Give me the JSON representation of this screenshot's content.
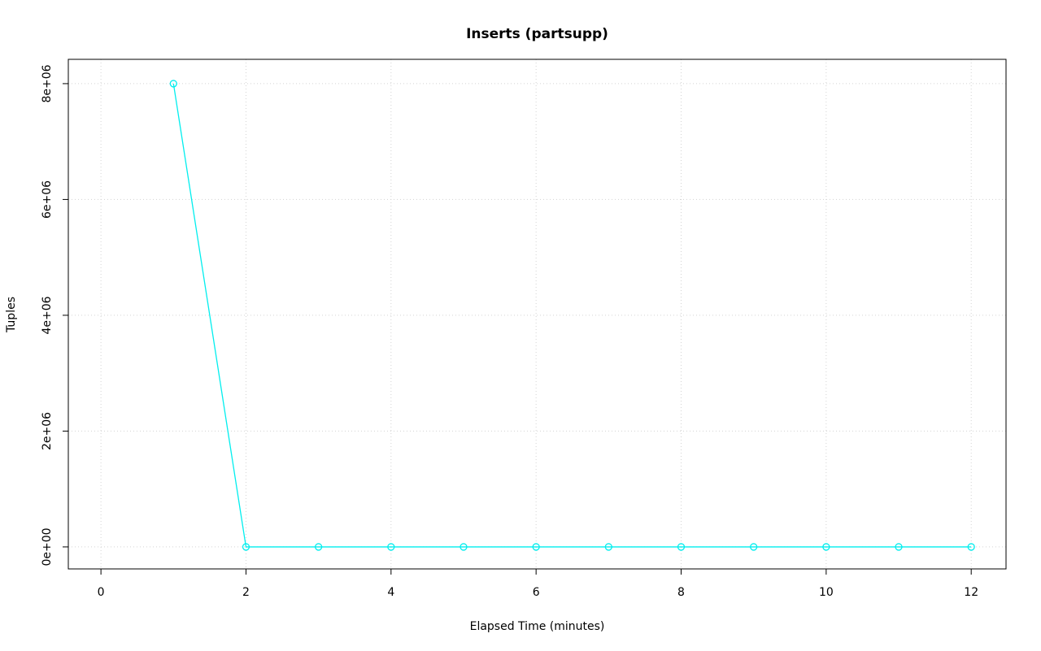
{
  "chart_data": {
    "type": "line",
    "title": "Inserts (partsupp)",
    "xlabel": "Elapsed Time (minutes)",
    "ylabel": "Tuples",
    "x": [
      1,
      2,
      3,
      4,
      5,
      6,
      7,
      8,
      9,
      10,
      11,
      12
    ],
    "series": [
      {
        "name": "inserts",
        "values": [
          8000000,
          0,
          0,
          0,
          0,
          0,
          0,
          0,
          0,
          0,
          0,
          0
        ]
      }
    ],
    "x_ticks": {
      "values": [
        0,
        2,
        4,
        6,
        8,
        10,
        12
      ],
      "labels": [
        "0",
        "2",
        "4",
        "6",
        "8",
        "10",
        "12"
      ]
    },
    "y_ticks": {
      "values": [
        0,
        2000000,
        4000000,
        6000000,
        8000000
      ],
      "labels": [
        "0e+00",
        "2e+06",
        "4e+06",
        "6e+06",
        "8e+06"
      ]
    },
    "xlim": [
      -0.45,
      12.48
    ],
    "ylim": [
      -380000,
      8420000
    ],
    "grid": true,
    "legend": "none",
    "marker": "open-circle",
    "style": "overplotted-points-and-lines",
    "colors": {
      "line": "#00eeee",
      "grid": "#d3d3d3",
      "frame": "#000000",
      "text": "#000000",
      "background": "#ffffff"
    }
  }
}
